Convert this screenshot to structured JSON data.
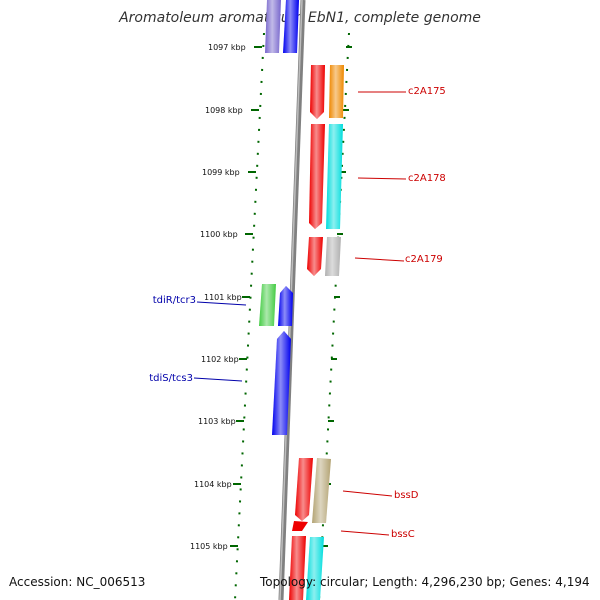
{
  "title": "Aromatoleum aromaticum EbN1, complete genome",
  "footer": {
    "accession": "Accession: NC_006513",
    "summary": "Topology: circular; Length: 4,296,230 bp; Genes: 4,194"
  },
  "kbp_labels": [
    "1097 kbp",
    "1098 kbp",
    "1099 kbp",
    "1100 kbp",
    "1101 kbp",
    "1102 kbp",
    "1103 kbp",
    "1104 kbp",
    "1105 kbp"
  ],
  "gene_labels": [
    {
      "text": "c2A175",
      "color": "#cc0000"
    },
    {
      "text": "c2A178",
      "color": "#cc0000"
    },
    {
      "text": "c2A179",
      "color": "#cc0000"
    },
    {
      "text": "tdiR/tcr3",
      "color": "#0000aa"
    },
    {
      "text": "tdiS/tcs3",
      "color": "#0000aa"
    },
    {
      "text": "bssD",
      "color": "#cc0000"
    },
    {
      "text": "bssC",
      "color": "#cc0000"
    }
  ],
  "colors": {
    "backbone": "#808080",
    "ticks": "#006600",
    "red": "#ee0000",
    "orange": "#ee8800",
    "cyan": "#00dddd",
    "gray": "#b0b0b0",
    "green": "#44cc44",
    "blue": "#0000ee",
    "purple": "#7766cc",
    "khaki": "#b3a373"
  }
}
